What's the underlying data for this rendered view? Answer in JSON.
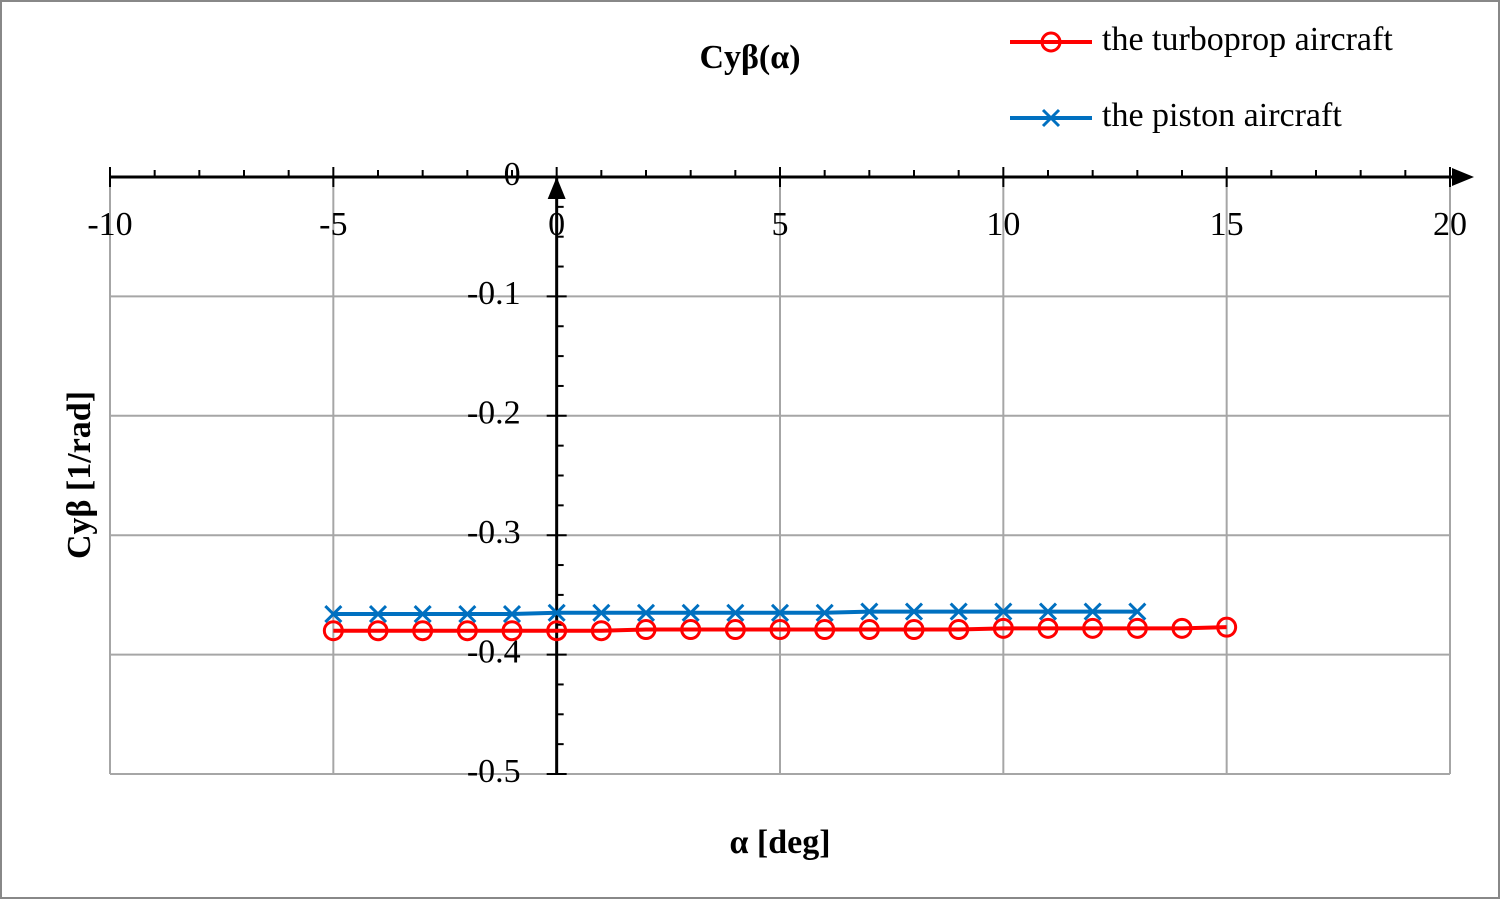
{
  "chart_data": {
    "type": "line",
    "title": "Cyβ(α)",
    "x_label": "α [deg]",
    "y_label": "Cyβ [1/rad]",
    "xlim": [
      -10,
      20
    ],
    "xticks": [
      -10,
      -5,
      0,
      5,
      10,
      15,
      20
    ],
    "ylim": [
      -0.5,
      0
    ],
    "yticks": [
      0,
      -0.1,
      -0.2,
      -0.3,
      -0.4,
      -0.5
    ],
    "grid": true,
    "legend": "top-right",
    "series": [
      {
        "name": "the turboprop aircraft",
        "color": "#ff0000",
        "marker": "circle",
        "x": [
          -5,
          -4,
          -3,
          -2,
          -1,
          0,
          1,
          2,
          3,
          4,
          5,
          6,
          7,
          8,
          9,
          10,
          11,
          12,
          13,
          14,
          15
        ],
        "values": [
          -0.38,
          -0.38,
          -0.38,
          -0.38,
          -0.38,
          -0.38,
          -0.38,
          -0.379,
          -0.379,
          -0.379,
          -0.379,
          -0.379,
          -0.379,
          -0.379,
          -0.379,
          -0.378,
          -0.378,
          -0.378,
          -0.378,
          -0.378,
          -0.377
        ]
      },
      {
        "name": "the piston aircraft",
        "color": "#0070c0",
        "marker": "x",
        "x": [
          -5,
          -4,
          -3,
          -2,
          -1,
          0,
          1,
          2,
          3,
          4,
          5,
          6,
          7,
          8,
          9,
          10,
          11,
          12,
          13
        ],
        "values": [
          -0.366,
          -0.366,
          -0.366,
          -0.366,
          -0.366,
          -0.365,
          -0.365,
          -0.365,
          -0.365,
          -0.365,
          -0.365,
          -0.365,
          -0.364,
          -0.364,
          -0.364,
          -0.364,
          -0.364,
          -0.364,
          -0.364
        ]
      }
    ]
  }
}
